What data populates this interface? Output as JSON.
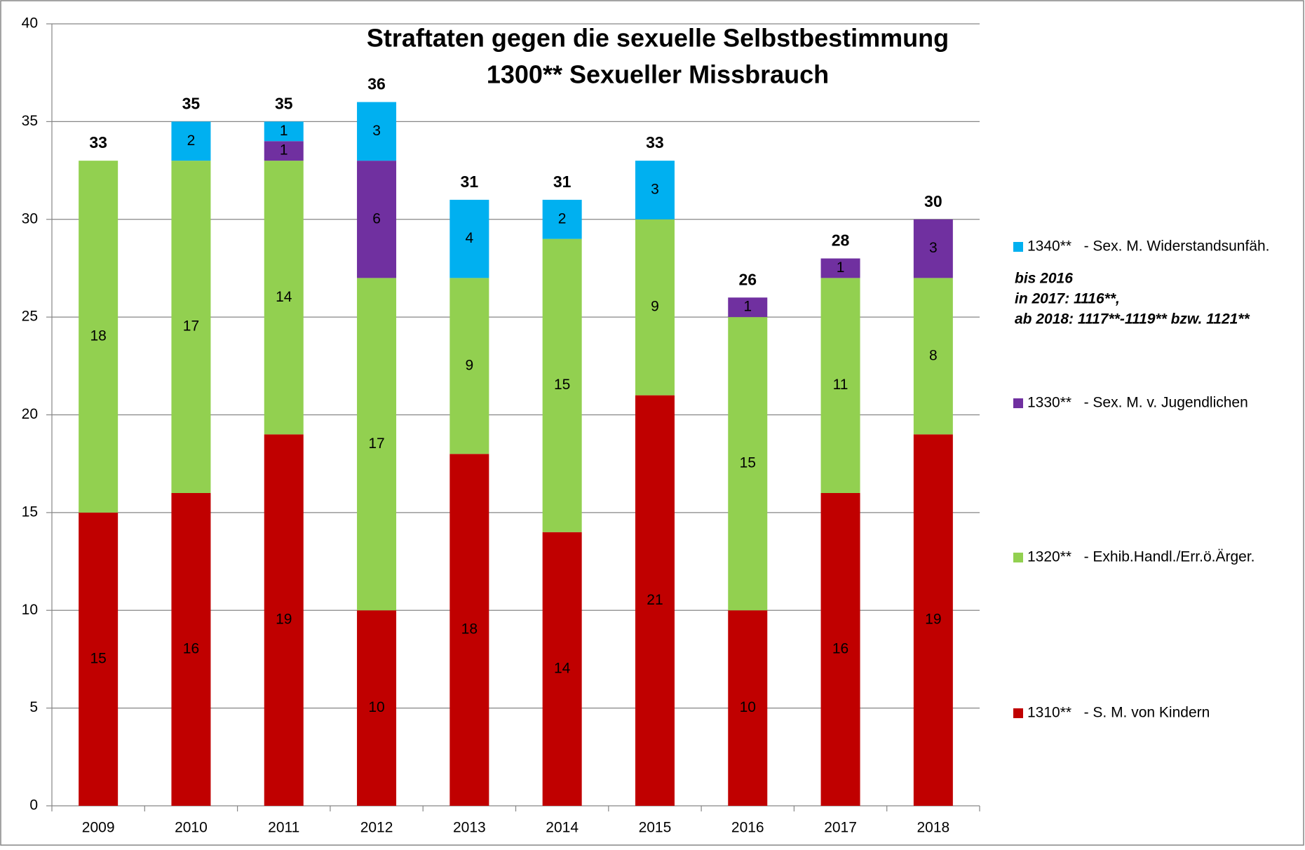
{
  "chart_data": {
    "type": "stacked_bar",
    "title": [
      "Straftaten gegen die sexuelle Selbstbestimmung",
      "1300** Sexueller Missbrauch"
    ],
    "categories": [
      "2009",
      "2010",
      "2011",
      "2012",
      "2013",
      "2014",
      "2015",
      "2016",
      "2017",
      "2018"
    ],
    "series": [
      {
        "name": "1310**   - S. M. von Kindern",
        "color": "#c00000",
        "values": [
          15,
          16,
          19,
          10,
          18,
          14,
          21,
          10,
          16,
          19
        ]
      },
      {
        "name": "1320**   - Exhib.Handl./Err.ö.Ärger.",
        "color": "#92d050",
        "values": [
          18,
          17,
          14,
          17,
          9,
          15,
          9,
          15,
          11,
          8
        ]
      },
      {
        "name": "1330**   - Sex. M. v. Jugendlichen",
        "color": "#7030a0",
        "values": [
          null,
          null,
          1,
          6,
          null,
          null,
          null,
          1,
          1,
          3
        ]
      },
      {
        "name": "1340**   - Sex. M. Widerstandsunfäh.",
        "color": "#00b0f0",
        "values": [
          null,
          2,
          1,
          3,
          4,
          2,
          3,
          null,
          null,
          null
        ]
      }
    ],
    "totals": [
      33,
      35,
      35,
      36,
      31,
      31,
      33,
      26,
      28,
      30
    ],
    "annotation": [
      "bis 2016",
      "in 2017: 1116**,",
      "ab 2018: 1117**-1119** bzw. 1121**"
    ],
    "ylim": [
      0,
      40
    ],
    "yticks": [
      0,
      5,
      10,
      15,
      20,
      25,
      30,
      35,
      40
    ],
    "grid": true
  }
}
